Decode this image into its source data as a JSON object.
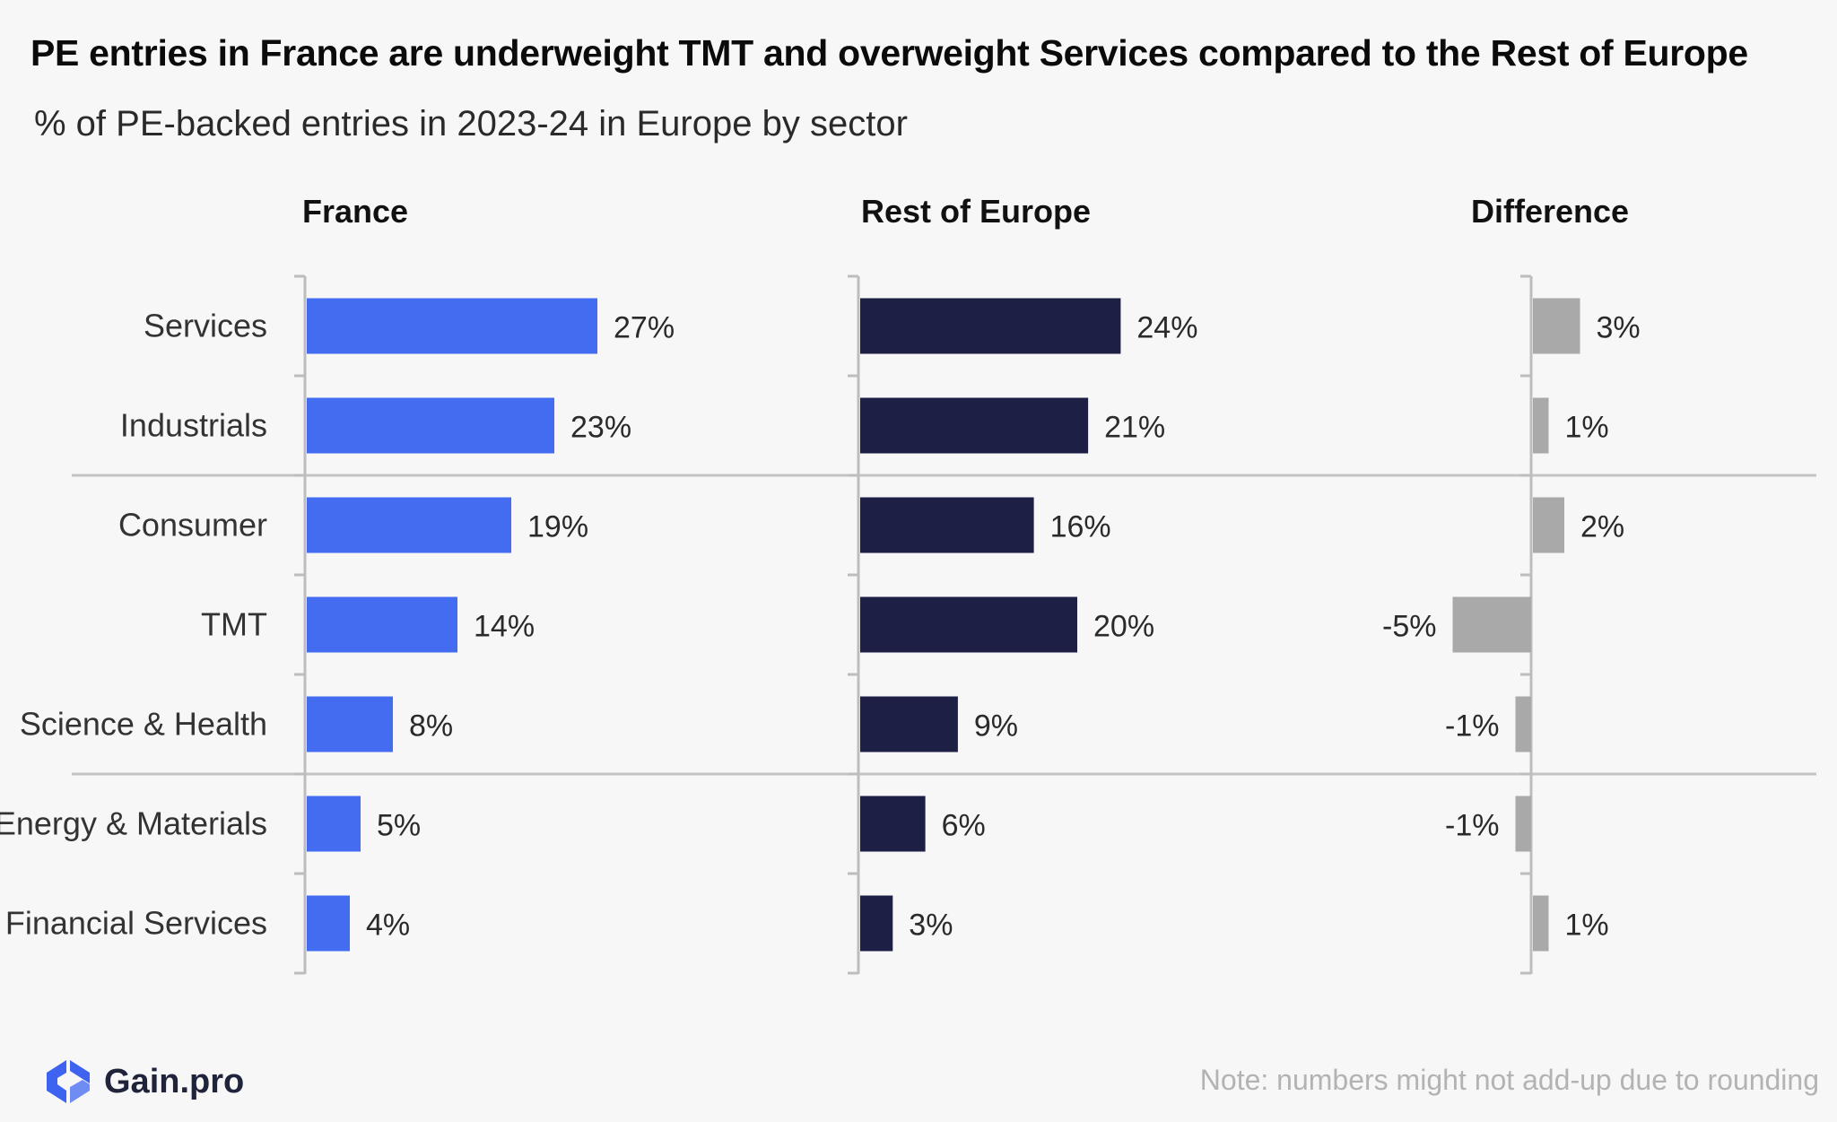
{
  "title": "PE entries in France are underweight TMT and overweight Services compared to the Rest of Europe",
  "subtitle": "% of PE-backed entries in 2023-24 in Europe by sector",
  "chart_data": {
    "type": "bar",
    "orientation": "horizontal",
    "categories": [
      "Services",
      "Industrials",
      "Consumer",
      "TMT",
      "Science & Health",
      "Energy & Materials",
      "Financial Services"
    ],
    "series": [
      {
        "name": "France",
        "values": [
          27,
          23,
          19,
          14,
          8,
          5,
          4
        ],
        "labels": [
          "27%",
          "23%",
          "19%",
          "14%",
          "8%",
          "5%",
          "4%"
        ],
        "color": "#436cf0"
      },
      {
        "name": "Rest of Europe",
        "values": [
          24,
          21,
          16,
          20,
          9,
          6,
          3
        ],
        "labels": [
          "24%",
          "21%",
          "16%",
          "20%",
          "9%",
          "6%",
          "3%"
        ],
        "color": "#1d1f45"
      },
      {
        "name": "Difference",
        "values": [
          3,
          1,
          2,
          -5,
          -1,
          -1,
          1
        ],
        "labels": [
          "3%",
          "1%",
          "2%",
          "-5%",
          "-1%",
          "-1%",
          "1%"
        ],
        "color": "#a9a9a9"
      }
    ],
    "category_groups": [
      [
        "Services",
        "Industrials"
      ],
      [
        "Consumer",
        "TMT",
        "Science & Health"
      ],
      [
        "Energy & Materials",
        "Financial Services"
      ]
    ],
    "grid": false
  },
  "logo": {
    "text": "Gain.pro",
    "icon": "gain-pro-logo-icon",
    "color": "#3d63f0"
  },
  "note": "Note: numbers might not add-up due to rounding"
}
